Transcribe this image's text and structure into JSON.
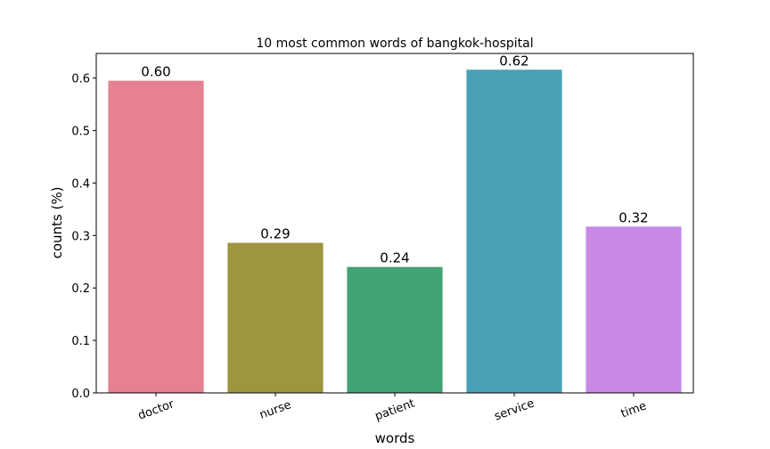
{
  "chart_data": {
    "type": "bar",
    "title": "10 most common words of bangkok-hospital",
    "xlabel": "words",
    "ylabel": "counts  (%)",
    "categories": [
      "doctor",
      "nurse",
      "patient",
      "service",
      "time"
    ],
    "values": [
      0.595,
      0.286,
      0.24,
      0.616,
      0.317
    ],
    "value_labels": [
      "0.60",
      "0.29",
      "0.24",
      "0.62",
      "0.32"
    ],
    "colors": [
      "#e58192",
      "#9f943f",
      "#43a276",
      "#4aa0b5",
      "#c889e6"
    ],
    "yticks": [
      0.0,
      0.1,
      0.2,
      0.3,
      0.4,
      0.5,
      0.6
    ],
    "ytick_labels": [
      "0.0",
      "0.1",
      "0.2",
      "0.3",
      "0.4",
      "0.5",
      "0.6"
    ],
    "ylim": [
      0,
      0.647
    ],
    "grid": false,
    "legend": "none"
  }
}
